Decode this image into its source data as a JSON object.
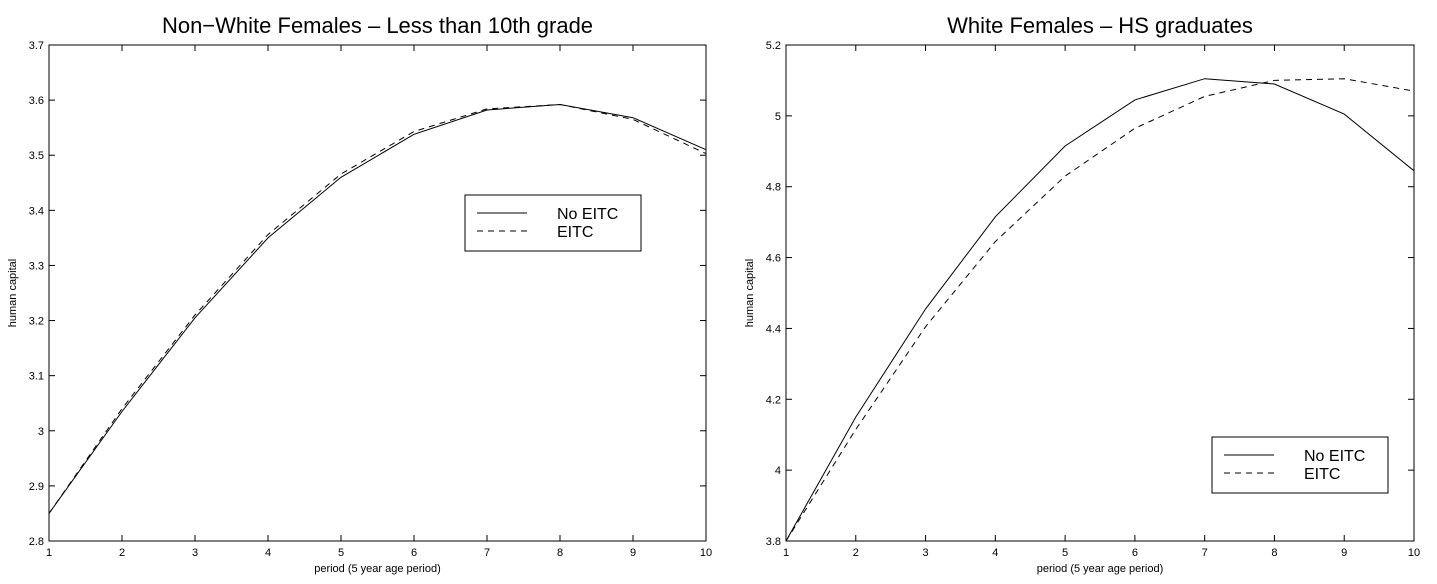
{
  "chart_data": [
    {
      "type": "line",
      "title": "Non−White Females – Less than 10th grade",
      "xlabel": "period (5 year age period)",
      "ylabel": "human capital",
      "xlim": [
        1,
        10
      ],
      "ylim": [
        2.8,
        3.7
      ],
      "xticks": [
        1,
        2,
        3,
        4,
        5,
        6,
        7,
        8,
        9,
        10
      ],
      "xtick_labels": [
        "1",
        "2",
        "3",
        "4",
        "5",
        "6",
        "7",
        "8",
        "9",
        "10"
      ],
      "yticks": [
        2.8,
        2.9,
        3.0,
        3.1,
        3.2,
        3.3,
        3.4,
        3.5,
        3.6,
        3.7
      ],
      "ytick_labels": [
        "2.8",
        "2.9",
        "3",
        "3.1",
        "3.2",
        "3.3",
        "3.4",
        "3.5",
        "3.6",
        "3.7"
      ],
      "grid": false,
      "legend_position": "center-right",
      "x": [
        1,
        2,
        3,
        4,
        5,
        6,
        7,
        8,
        9,
        10
      ],
      "series": [
        {
          "name": "No EITC",
          "style": "solid",
          "values": [
            2.85,
            3.035,
            3.205,
            3.35,
            3.46,
            3.538,
            3.582,
            3.592,
            3.568,
            3.51
          ]
        },
        {
          "name": "EITC",
          "style": "dashed",
          "values": [
            2.85,
            3.04,
            3.21,
            3.356,
            3.466,
            3.543,
            3.584,
            3.592,
            3.565,
            3.503
          ]
        }
      ]
    },
    {
      "type": "line",
      "title": "White Females – HS graduates",
      "xlabel": "period (5 year age period)",
      "ylabel": "human capital",
      "xlim": [
        1,
        10
      ],
      "ylim": [
        3.8,
        5.2
      ],
      "xticks": [
        1,
        2,
        3,
        4,
        5,
        6,
        7,
        8,
        9,
        10
      ],
      "xtick_labels": [
        "1",
        "2",
        "3",
        "4",
        "5",
        "6",
        "7",
        "8",
        "9",
        "10"
      ],
      "yticks": [
        3.8,
        4.0,
        4.2,
        4.4,
        4.6,
        4.8,
        5.0,
        5.2
      ],
      "ytick_labels": [
        "3.8",
        "4",
        "4.2",
        "4.4",
        "4.6",
        "4.8",
        "5",
        "5.2"
      ],
      "grid": false,
      "legend_position": "bottom-right",
      "x": [
        1,
        2,
        3,
        4,
        5,
        6,
        7,
        8,
        9,
        10
      ],
      "series": [
        {
          "name": "No EITC",
          "style": "solid",
          "values": [
            3.8,
            4.15,
            4.455,
            4.715,
            4.915,
            5.045,
            5.105,
            5.09,
            5.005,
            4.845
          ]
        },
        {
          "name": "EITC",
          "style": "dashed",
          "values": [
            3.8,
            4.115,
            4.405,
            4.645,
            4.83,
            4.965,
            5.055,
            5.1,
            5.105,
            5.07
          ]
        }
      ]
    }
  ]
}
